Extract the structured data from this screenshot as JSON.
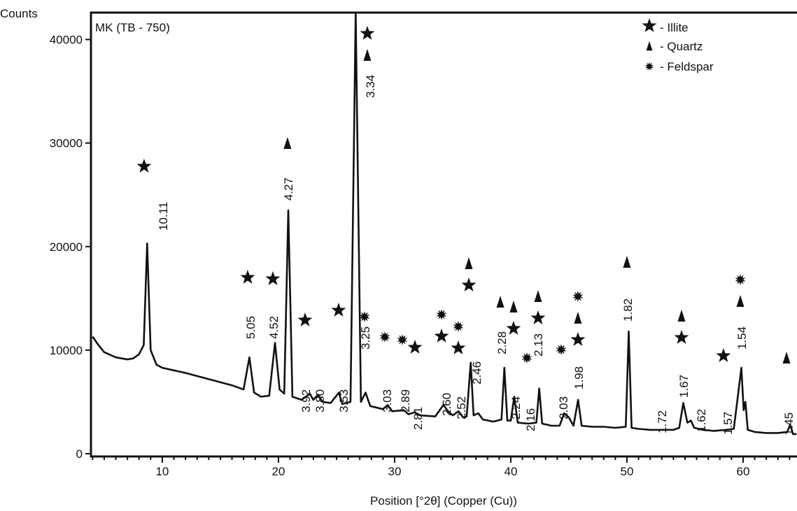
{
  "chart_data": {
    "type": "line",
    "y_label": "Counts",
    "title": "MK (TB - 750)",
    "x_label": "Position [°2θ] (Copper (Cu))",
    "xlim": [
      3.86,
      64.64
    ],
    "ylim": [
      -270,
      42600
    ],
    "xticks": [
      10,
      20,
      30,
      40,
      50,
      60
    ],
    "xminorticks": [
      4,
      5,
      6,
      7,
      8,
      9,
      11,
      12,
      13,
      14,
      15,
      16,
      17,
      18,
      19,
      21,
      22,
      23,
      24,
      25,
      26,
      27,
      28,
      29,
      31,
      32,
      33,
      34,
      35,
      36,
      37,
      38,
      39,
      41,
      42,
      43,
      44,
      45,
      46,
      47,
      48,
      49,
      51,
      52,
      53,
      54,
      55,
      56,
      57,
      58,
      59,
      61,
      62,
      63,
      64
    ],
    "yticks": [
      0,
      10000,
      20000,
      30000,
      40000
    ],
    "x": [
      4,
      4.5,
      5,
      6,
      7,
      7.5,
      8,
      8.4,
      8.7,
      9,
      9.5,
      10,
      12,
      14,
      16,
      17,
      17.5,
      17.9,
      18.5,
      19.2,
      19.7,
      20.1,
      20.5,
      20.85,
      21.2,
      22,
      22.7,
      23,
      23.4,
      23.8,
      24.5,
      25.2,
      25.5,
      26.2,
      26.65,
      27.1,
      27.5,
      27.9,
      29,
      29.4,
      29.8,
      30.8,
      31.2,
      31.7,
      32.2,
      33.5,
      34.2,
      34.6,
      35,
      35.5,
      35.9,
      36.2,
      36.55,
      36.8,
      37.2,
      37.6,
      38.5,
      39.2,
      39.45,
      39.7,
      40,
      40.3,
      40.6,
      41.5,
      42.2,
      42.45,
      42.7,
      43.5,
      44.2,
      44.6,
      45,
      45.4,
      45.8,
      46.1,
      47,
      48,
      49,
      49.9,
      50.15,
      50.4,
      51,
      52,
      53,
      54,
      54.5,
      54.85,
      55.2,
      55.5,
      55.8,
      56.5,
      57.5,
      58.5,
      59.2,
      59.85,
      60.05,
      60.2,
      60.4,
      61,
      62,
      63,
      63.8,
      64.05,
      64.3,
      64.6
    ],
    "series": [
      {
        "color": "#111111",
        "values": [
          11300,
          10500,
          9800,
          9300,
          9100,
          9200,
          9600,
          10500,
          20300,
          10000,
          8600,
          8300,
          7800,
          7200,
          6600,
          6200,
          9300,
          5900,
          5500,
          5600,
          10700,
          6200,
          5800,
          23500,
          5500,
          5200,
          5800,
          5200,
          5700,
          5000,
          4900,
          5900,
          4800,
          5000,
          42600,
          5000,
          5900,
          4600,
          4300,
          4700,
          4100,
          4200,
          3800,
          4000,
          3700,
          3600,
          4700,
          4100,
          3700,
          4100,
          3500,
          3600,
          8800,
          3700,
          3900,
          3300,
          3100,
          3300,
          8300,
          3200,
          3200,
          5500,
          3000,
          2900,
          3000,
          6300,
          2900,
          2700,
          2700,
          3900,
          3500,
          2700,
          5200,
          2700,
          2600,
          2600,
          2500,
          2600,
          11800,
          2500,
          2400,
          2300,
          2300,
          2300,
          2500,
          4900,
          3000,
          3200,
          2500,
          2300,
          2200,
          2300,
          2400,
          8300,
          4200,
          5000,
          2300,
          2100,
          2000,
          2000,
          2100,
          2800,
          1900,
          1900
        ]
      }
    ],
    "minerals": [
      "- Illite",
      "- Quartz",
      "- Feldspar"
    ],
    "annotations": [
      {
        "x": 10.0,
        "label": "10.11",
        "markers": [
          0
        ]
      },
      {
        "x": 17.53,
        "label": "5.05",
        "markers": [
          0
        ]
      },
      {
        "x": 19.52,
        "label": "4.52",
        "markers": [
          0
        ]
      },
      {
        "x": 20.78,
        "label": "4.27",
        "markers": [
          1
        ]
      },
      {
        "x": 22.29,
        "label": "3.92",
        "markers": [
          0
        ]
      },
      {
        "x": 23.49,
        "label": "3.80",
        "markers": []
      },
      {
        "x": 25.54,
        "label": "3.53",
        "markers": [
          0
        ]
      },
      {
        "x": 27.83,
        "label": "3.34",
        "markers": [
          0,
          1
        ]
      },
      {
        "x": 27.41,
        "label": "3.25",
        "markers": [
          2
        ]
      },
      {
        "x": 29.28,
        "label": "3.03",
        "markers": [
          2
        ]
      },
      {
        "x": 30.84,
        "label": "2.89",
        "markers": [
          2
        ]
      },
      {
        "x": 31.93,
        "label": "2.81",
        "markers": [
          0
        ]
      },
      {
        "x": 34.4,
        "label": "2.60",
        "markers": [
          2,
          0
        ]
      },
      {
        "x": 35.66,
        "label": "2.52",
        "markers": [
          2,
          0
        ]
      },
      {
        "x": 36.99,
        "label": "2.46",
        "markers": [
          1,
          0
        ]
      },
      {
        "x": 39.16,
        "label": "2.28",
        "markers": [
          1
        ]
      },
      {
        "x": 40.36,
        "label": "2.24",
        "markers": [
          1,
          0
        ]
      },
      {
        "x": 41.63,
        "label": "2.16",
        "markers": [
          2
        ]
      },
      {
        "x": 42.29,
        "label": "2.13",
        "markers": [
          1,
          0
        ]
      },
      {
        "x": 44.46,
        "label": "2.03",
        "markers": [
          2
        ]
      },
      {
        "x": 45.78,
        "label": "1.98",
        "markers": [
          2,
          1,
          0
        ]
      },
      {
        "x": 50.0,
        "label": "1.82",
        "markers": [
          1
        ]
      },
      {
        "x": 52.95,
        "label": "1.72",
        "markers": []
      },
      {
        "x": 54.82,
        "label": "1.67",
        "markers": [
          1,
          0
        ]
      },
      {
        "x": 56.33,
        "label": "1.62",
        "markers": []
      },
      {
        "x": 58.61,
        "label": "1.57",
        "markers": [
          0
        ]
      },
      {
        "x": 59.82,
        "label": "1.54",
        "markers": [
          2,
          1
        ]
      },
      {
        "x": 63.86,
        "label": "1.45",
        "markers": [
          1
        ]
      }
    ]
  }
}
